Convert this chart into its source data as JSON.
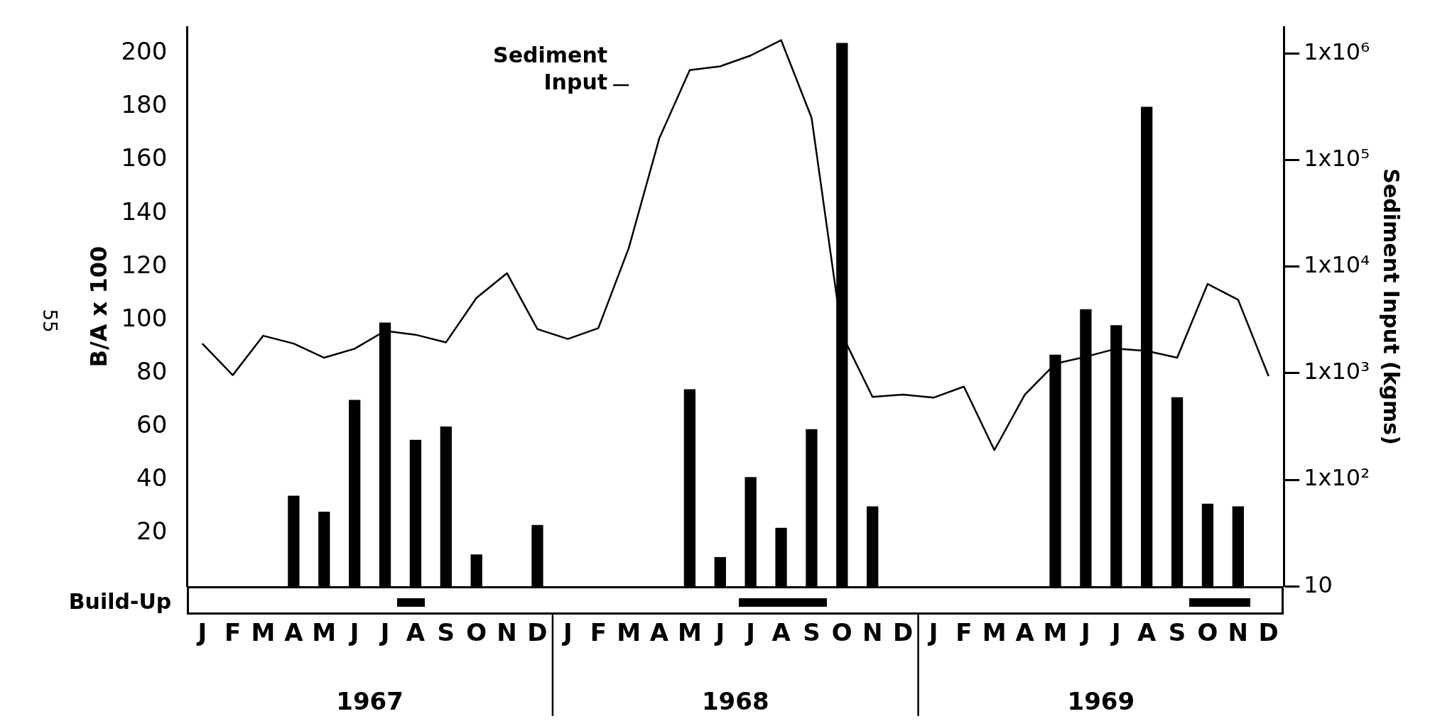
{
  "chart_data": {
    "type": "bar",
    "ylabel": "B/A x 100",
    "y2label": "Sediment Input (kgms)",
    "categories": [
      "J",
      "F",
      "M",
      "A",
      "M",
      "J",
      "J",
      "A",
      "S",
      "O",
      "N",
      "D",
      "J",
      "F",
      "M",
      "A",
      "M",
      "J",
      "J",
      "A",
      "S",
      "O",
      "N",
      "D",
      "J",
      "F",
      "M",
      "A",
      "M",
      "J",
      "J",
      "A",
      "S",
      "O",
      "N",
      "D"
    ],
    "series": [
      {
        "color": "#000000",
        "values": [
          null,
          null,
          null,
          34,
          28,
          70,
          99,
          55,
          60,
          12,
          null,
          23,
          null,
          null,
          null,
          null,
          74,
          11,
          41,
          22,
          59,
          204,
          30,
          null,
          null,
          null,
          null,
          null,
          87,
          104,
          98,
          180,
          71,
          31,
          30,
          null
        ]
      },
      {
        "type": "line",
        "name": "Sediment Input",
        "axis": "y2",
        "color": "#000000",
        "values": [
          1900,
          960,
          2250,
          1900,
          1400,
          1700,
          2500,
          2300,
          1950,
          5100,
          8700,
          2600,
          2100,
          2650,
          15000,
          160000,
          700000,
          760000,
          960000,
          1340000,
          250000,
          2300,
          600,
          630,
          590,
          750,
          190,
          630,
          1230,
          1430,
          1700,
          1620,
          1400,
          6900,
          4900,
          940
        ]
      }
    ],
    "ylim": [
      0,
      210
    ],
    "yticks": [
      20,
      40,
      60,
      80,
      100,
      120,
      140,
      160,
      180,
      200
    ],
    "y2lim": [
      10,
      1780000
    ],
    "log": "y2",
    "y2ticks": [
      {
        "value": 10,
        "label": "10"
      },
      {
        "value": 100,
        "label": "1x10²"
      },
      {
        "value": 1000,
        "label": "1x10³"
      },
      {
        "value": 10000,
        "label": "1x10⁴"
      },
      {
        "value": 100000,
        "label": "1x10⁵"
      },
      {
        "value": 1000000,
        "label": "1x10⁶"
      }
    ],
    "annotations": [
      "1967",
      "1968",
      "1969",
      "55",
      "Build-Up"
    ],
    "legend": false,
    "marker": "none",
    "line_style": "solid"
  }
}
